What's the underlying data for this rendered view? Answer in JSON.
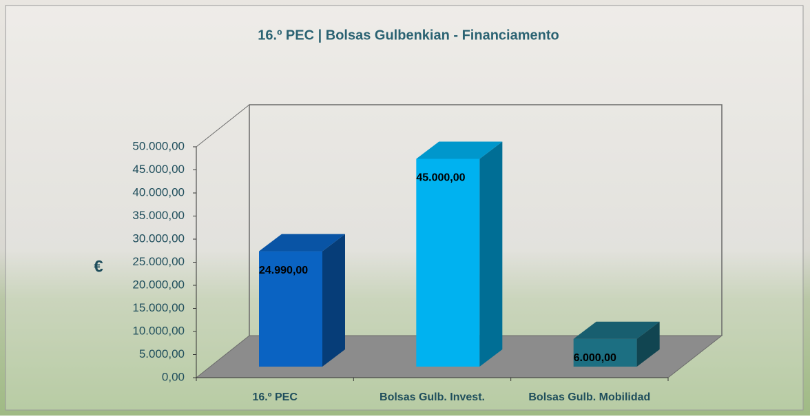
{
  "chart_data": {
    "type": "bar3d",
    "title": "16.º PEC | Bolsas Gulbenkian - Financiamento",
    "y_label": "€",
    "categories": [
      "16.º PEC",
      "Bolsas Gulb. Invest.",
      "Bolsas Gulb. Mobilidad"
    ],
    "values": [
      24990,
      45000,
      6000
    ],
    "value_labels": [
      "24.990,00",
      "45.000,00",
      "6.000,00"
    ],
    "colors": [
      "#0a63c2",
      "#00b2f0",
      "#1c6f82"
    ],
    "ylim": [
      0,
      50000
    ],
    "yticks": [
      {
        "value": 0,
        "label": "0,00"
      },
      {
        "value": 5000,
        "label": "5.000,00"
      },
      {
        "value": 10000,
        "label": "10.000,00"
      },
      {
        "value": 15000,
        "label": "15.000,00"
      },
      {
        "value": 20000,
        "label": "20.000,00"
      },
      {
        "value": 25000,
        "label": "25.000,00"
      },
      {
        "value": 30000,
        "label": "30.000,00"
      },
      {
        "value": 35000,
        "label": "35.000,00"
      },
      {
        "value": 40000,
        "label": "40.000,00"
      },
      {
        "value": 45000,
        "label": "45.000,00"
      },
      {
        "value": 50000,
        "label": "50.000,00"
      }
    ]
  }
}
